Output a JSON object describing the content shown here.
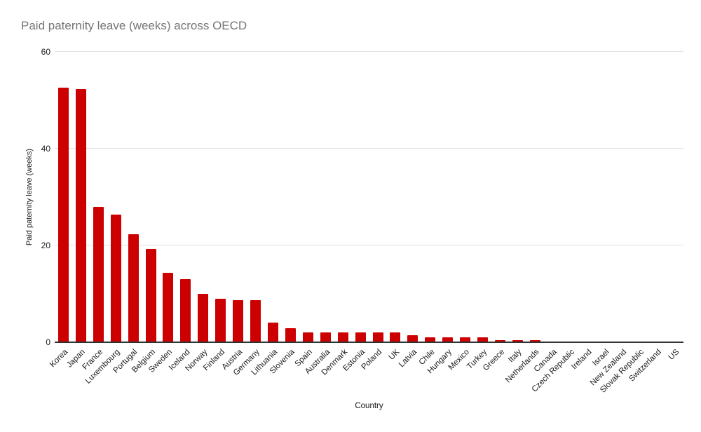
{
  "title": "Paid paternity leave (weeks) across OECD",
  "colors": {
    "bar": "#cc0000",
    "title_text": "#757575",
    "axis_text": "#1a1a1a",
    "gridline": "#e0e0e0",
    "baseline": "#333333",
    "background": "#ffffff"
  },
  "chart_data": {
    "type": "bar",
    "title": "Paid paternity leave (weeks) across OECD",
    "xlabel": "Country",
    "ylabel": "Paid paternity leave (weeks)",
    "ylim": [
      0,
      60
    ],
    "yticks": [
      0,
      20,
      40,
      60
    ],
    "grid": "horizontal",
    "legend_position": "none",
    "bar_color": "#cc0000",
    "categories": [
      "Korea",
      "Japan",
      "France",
      "Luxembourg",
      "Portugal",
      "Belgium",
      "Sweden",
      "Iceland",
      "Norway",
      "Finland",
      "Austria",
      "Germany",
      "Lithuania",
      "Slovenia",
      "Spain",
      "Australia",
      "Denmark",
      "Estonia",
      "Poland",
      "UK",
      "Latvia",
      "Chile",
      "Hungary",
      "Mexico",
      "Turkey",
      "Greece",
      "Italy",
      "Netherlands",
      "Canada",
      "Czech Republic",
      "Ireland",
      "Israel",
      "New Zealand",
      "Slovak Republic",
      "Switzerland",
      "US"
    ],
    "values": [
      52.6,
      52.3,
      28.0,
      26.4,
      22.3,
      19.3,
      14.3,
      13.0,
      10.0,
      9.0,
      8.7,
      8.7,
      4.0,
      2.9,
      2.1,
      2.0,
      2.0,
      2.0,
      2.0,
      2.0,
      1.4,
      1.0,
      1.0,
      1.0,
      1.0,
      0.4,
      0.4,
      0.4,
      0.0,
      0.0,
      0.0,
      0.0,
      0.0,
      0.0,
      0.0,
      0.0
    ]
  }
}
